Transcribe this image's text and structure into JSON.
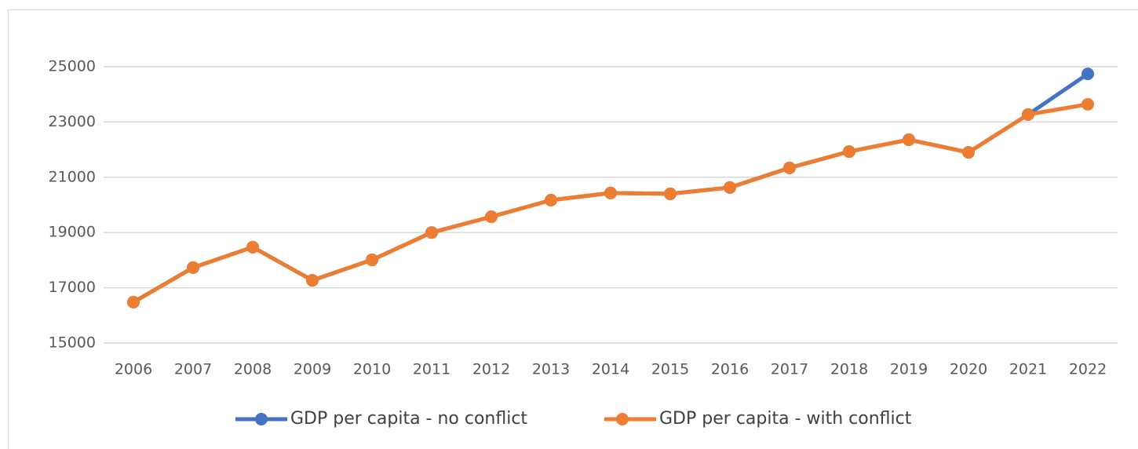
{
  "chart_data": {
    "type": "line",
    "categories": [
      "2006",
      "2007",
      "2008",
      "2009",
      "2010",
      "2011",
      "2012",
      "2013",
      "2014",
      "2015",
      "2016",
      "2017",
      "2018",
      "2019",
      "2020",
      "2021",
      "2022"
    ],
    "series": [
      {
        "name": "GDP per capita - no conflict",
        "color": "#4472c4",
        "values": [
          16480,
          17730,
          18470,
          17270,
          18010,
          19000,
          19570,
          20170,
          20430,
          20400,
          20630,
          21340,
          21930,
          22360,
          21900,
          23270,
          24740
        ]
      },
      {
        "name": "GDP per capita - with conflict",
        "color": "#ed7d31",
        "values": [
          16480,
          17730,
          18470,
          17270,
          18010,
          19000,
          19570,
          20170,
          20430,
          20400,
          20630,
          21340,
          21930,
          22360,
          21900,
          23270,
          23640
        ]
      }
    ],
    "ylim": [
      15000,
      25000
    ],
    "yticks": [
      15000,
      17000,
      19000,
      21000,
      23000,
      25000
    ],
    "grid": true,
    "legend": "bottom"
  }
}
